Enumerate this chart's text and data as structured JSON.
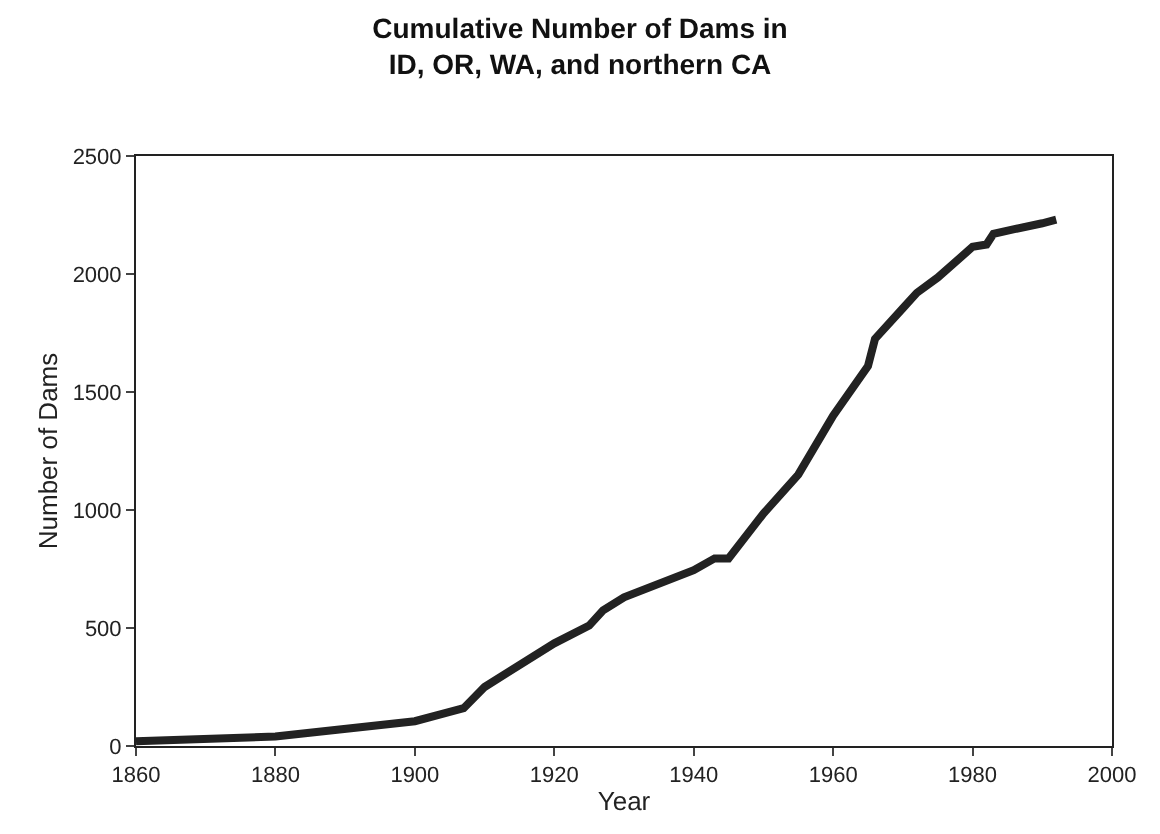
{
  "chart_data": {
    "type": "line",
    "title": "Cumulative Number of Dams in\nID, OR, WA, and northern CA",
    "xlabel": "Year",
    "ylabel": "Number of Dams",
    "x": [
      1860,
      1880,
      1900,
      1905,
      1907,
      1910,
      1920,
      1925,
      1927,
      1930,
      1940,
      1943,
      1945,
      1950,
      1955,
      1960,
      1965,
      1966,
      1970,
      1972,
      1975,
      1980,
      1982,
      1983,
      1986,
      1990,
      1992
    ],
    "series": [
      {
        "color": "#222222",
        "values": [
          20,
          40,
          105,
          145,
          160,
          250,
          435,
          510,
          575,
          630,
          745,
          795,
          795,
          985,
          1150,
          1400,
          1610,
          1725,
          1855,
          1920,
          1985,
          2115,
          2125,
          2170,
          2190,
          2215,
          2230
        ]
      }
    ],
    "xlim": [
      1860,
      2000
    ],
    "xticks": [
      1860,
      1880,
      1900,
      1920,
      1940,
      1960,
      1980,
      2000
    ],
    "ylim": [
      0,
      2500
    ],
    "yticks": [
      0,
      500,
      1000,
      1500,
      2000,
      2500
    ]
  }
}
